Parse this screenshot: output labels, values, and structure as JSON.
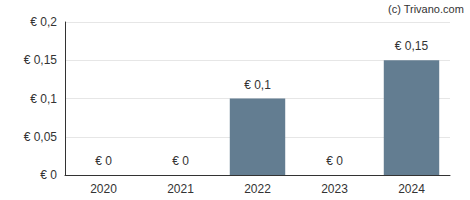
{
  "chart_data": {
    "type": "bar",
    "annotation": "(c) Trivano.com",
    "categories": [
      "2020",
      "2021",
      "2022",
      "2023",
      "2024"
    ],
    "values": [
      0,
      0,
      0.1,
      0,
      0.15
    ],
    "value_labels": [
      "€ 0",
      "€ 0",
      "€ 0,1",
      "€ 0",
      "€ 0,15"
    ],
    "data_labels": true,
    "color": "#637d91",
    "ylim": [
      0,
      0.2
    ],
    "yticks": [
      {
        "value": 0,
        "label": "€ 0"
      },
      {
        "value": 0.05,
        "label": "€ 0,05"
      },
      {
        "value": 0.1,
        "label": "€ 0,1"
      },
      {
        "value": 0.15,
        "label": "€ 0,15"
      },
      {
        "value": 0.2,
        "label": "€ 0,2"
      }
    ],
    "grid": true
  }
}
